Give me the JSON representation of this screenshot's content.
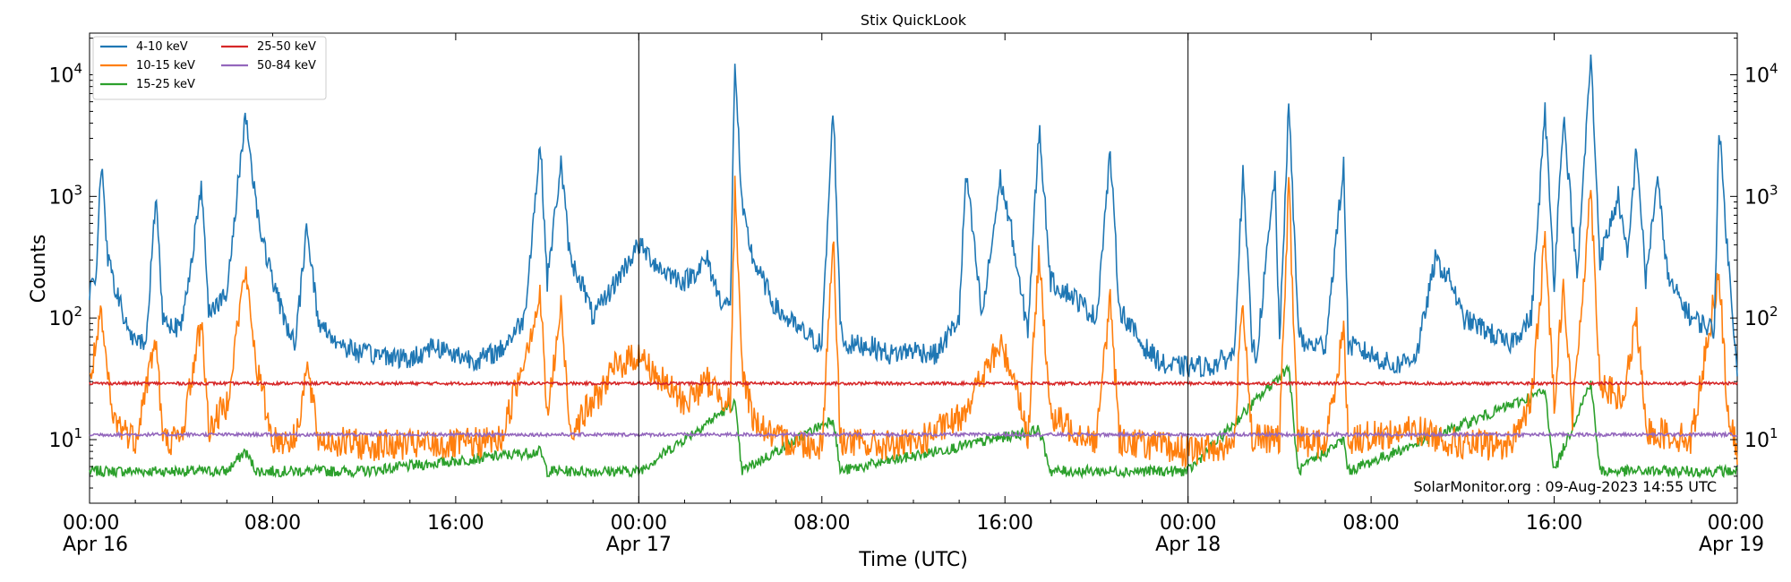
{
  "chart_data": {
    "type": "line",
    "title": "Stix QuickLook",
    "xlabel": "Time (UTC)",
    "ylabel": "Counts",
    "yscale": "log",
    "ylim": [
      3,
      22000
    ],
    "xlim_hours": [
      0,
      72
    ],
    "x_ticks": [
      {
        "h": 0,
        "time": "00:00",
        "date": "Apr 16"
      },
      {
        "h": 8,
        "time": "08:00",
        "date": ""
      },
      {
        "h": 16,
        "time": "16:00",
        "date": ""
      },
      {
        "h": 24,
        "time": "00:00",
        "date": "Apr 17"
      },
      {
        "h": 32,
        "time": "08:00",
        "date": ""
      },
      {
        "h": 40,
        "time": "16:00",
        "date": ""
      },
      {
        "h": 48,
        "time": "00:00",
        "date": "Apr 18"
      },
      {
        "h": 56,
        "time": "08:00",
        "date": ""
      },
      {
        "h": 64,
        "time": "16:00",
        "date": ""
      },
      {
        "h": 72,
        "time": "00:00",
        "date": "Apr 19"
      }
    ],
    "y_ticks": [
      {
        "v": 10,
        "base": "10",
        "exp": "1"
      },
      {
        "v": 100,
        "base": "10",
        "exp": "2"
      },
      {
        "v": 1000,
        "base": "10",
        "exp": "3"
      },
      {
        "v": 10000,
        "base": "10",
        "exp": "4"
      }
    ],
    "day_boundaries_hours": [
      24,
      48
    ],
    "legend": {
      "placement": "top-left",
      "columns": 2
    },
    "series": [
      {
        "name": "4-10 keV",
        "color": "#1f77b4",
        "points": [
          [
            0,
            150
          ],
          [
            0.3,
            250
          ],
          [
            0.5,
            2000
          ],
          [
            0.8,
            300
          ],
          [
            1.5,
            100
          ],
          [
            2,
            60
          ],
          [
            2.5,
            70
          ],
          [
            2.9,
            1100
          ],
          [
            3.2,
            100
          ],
          [
            4,
            80
          ],
          [
            4.9,
            1200
          ],
          [
            5.2,
            120
          ],
          [
            6,
            150
          ],
          [
            6.8,
            4800
          ],
          [
            7.4,
            600
          ],
          [
            8,
            200
          ],
          [
            8.5,
            100
          ],
          [
            9,
            60
          ],
          [
            9.5,
            600
          ],
          [
            10,
            90
          ],
          [
            11,
            60
          ],
          [
            12,
            50
          ],
          [
            13,
            50
          ],
          [
            14,
            45
          ],
          [
            15,
            60
          ],
          [
            16,
            50
          ],
          [
            17,
            45
          ],
          [
            18,
            55
          ],
          [
            19,
            100
          ],
          [
            19.7,
            2800
          ],
          [
            20,
            200
          ],
          [
            20.6,
            1900
          ],
          [
            21,
            300
          ],
          [
            21.5,
            200
          ],
          [
            22,
            100
          ],
          [
            23,
            200
          ],
          [
            24,
            400
          ],
          [
            25,
            250
          ],
          [
            26,
            200
          ],
          [
            27,
            300
          ],
          [
            27.5,
            150
          ],
          [
            28,
            120
          ],
          [
            28.2,
            14000
          ],
          [
            28.5,
            800
          ],
          [
            29,
            300
          ],
          [
            30,
            120
          ],
          [
            31,
            80
          ],
          [
            32,
            60
          ],
          [
            32.5,
            5800
          ],
          [
            32.8,
            100
          ],
          [
            33,
            60
          ],
          [
            34,
            60
          ],
          [
            35,
            50
          ],
          [
            36,
            55
          ],
          [
            37,
            50
          ],
          [
            38,
            100
          ],
          [
            38.3,
            1600
          ],
          [
            39,
            100
          ],
          [
            39.8,
            1400
          ],
          [
            40.3,
            500
          ],
          [
            40.6,
            200
          ],
          [
            41,
            80
          ],
          [
            41.5,
            3700
          ],
          [
            42,
            200
          ],
          [
            43,
            150
          ],
          [
            44,
            100
          ],
          [
            44.6,
            2300
          ],
          [
            45,
            120
          ],
          [
            46,
            60
          ],
          [
            47,
            40
          ],
          [
            47.5,
            40
          ],
          [
            48,
            40
          ],
          [
            49,
            40
          ],
          [
            50,
            50
          ],
          [
            50.4,
            1500
          ],
          [
            50.8,
            60
          ],
          [
            51,
            50
          ],
          [
            51.8,
            1500
          ],
          [
            52,
            60
          ],
          [
            52.4,
            5800
          ],
          [
            52.8,
            100
          ],
          [
            53,
            60
          ],
          [
            54,
            60
          ],
          [
            54.8,
            1800
          ],
          [
            55,
            60
          ],
          [
            56,
            50
          ],
          [
            57,
            40
          ],
          [
            58,
            50
          ],
          [
            58.8,
            300
          ],
          [
            59.5,
            200
          ],
          [
            60,
            100
          ],
          [
            61,
            80
          ],
          [
            62,
            60
          ],
          [
            63,
            100
          ],
          [
            63.6,
            5000
          ],
          [
            64,
            200
          ],
          [
            64.4,
            4700
          ],
          [
            64.8,
            600
          ],
          [
            65,
            200
          ],
          [
            65.6,
            14500
          ],
          [
            66,
            300
          ],
          [
            66.8,
            1000
          ],
          [
            67.2,
            300
          ],
          [
            67.6,
            2600
          ],
          [
            68,
            200
          ],
          [
            68.5,
            1400
          ],
          [
            69,
            200
          ],
          [
            70,
            100
          ],
          [
            71,
            80
          ],
          [
            71.2,
            3900
          ],
          [
            71.6,
            300
          ],
          [
            72,
            40
          ]
        ]
      },
      {
        "name": "10-15 keV",
        "color": "#ff7f0e",
        "points": [
          [
            0,
            30
          ],
          [
            0.5,
            100
          ],
          [
            1,
            15
          ],
          [
            2,
            10
          ],
          [
            2.9,
            70
          ],
          [
            3.2,
            10
          ],
          [
            4,
            10
          ],
          [
            4.9,
            100
          ],
          [
            5.2,
            12
          ],
          [
            6,
            20
          ],
          [
            6.8,
            250
          ],
          [
            7.3,
            40
          ],
          [
            8,
            10
          ],
          [
            9,
            10
          ],
          [
            9.5,
            40
          ],
          [
            10,
            10
          ],
          [
            12,
            9
          ],
          [
            14,
            9
          ],
          [
            16,
            9
          ],
          [
            18,
            10
          ],
          [
            19.7,
            150
          ],
          [
            20,
            15
          ],
          [
            20.6,
            120
          ],
          [
            21,
            12
          ],
          [
            22,
            20
          ],
          [
            23,
            40
          ],
          [
            24,
            50
          ],
          [
            25,
            30
          ],
          [
            26,
            20
          ],
          [
            27,
            30
          ],
          [
            28,
            20
          ],
          [
            28.2,
            1100
          ],
          [
            28.5,
            40
          ],
          [
            29,
            15
          ],
          [
            30,
            10
          ],
          [
            32,
            9
          ],
          [
            32.5,
            500
          ],
          [
            32.8,
            10
          ],
          [
            34,
            9
          ],
          [
            36,
            9
          ],
          [
            38,
            15
          ],
          [
            39.8,
            60
          ],
          [
            40.5,
            30
          ],
          [
            41,
            10
          ],
          [
            41.5,
            350
          ],
          [
            42,
            15
          ],
          [
            44,
            10
          ],
          [
            44.6,
            150
          ],
          [
            45,
            10
          ],
          [
            48,
            8
          ],
          [
            50,
            9
          ],
          [
            50.4,
            150
          ],
          [
            50.8,
            10
          ],
          [
            52,
            10
          ],
          [
            52.4,
            1300
          ],
          [
            52.8,
            10
          ],
          [
            54,
            9
          ],
          [
            54.8,
            80
          ],
          [
            55,
            10
          ],
          [
            58,
            12
          ],
          [
            60,
            9
          ],
          [
            62,
            9
          ],
          [
            63,
            20
          ],
          [
            63.6,
            450
          ],
          [
            64,
            20
          ],
          [
            64.4,
            200
          ],
          [
            64.8,
            15
          ],
          [
            65.6,
            1200
          ],
          [
            66,
            30
          ],
          [
            67,
            20
          ],
          [
            67.6,
            100
          ],
          [
            68,
            12
          ],
          [
            70,
            10
          ],
          [
            71.2,
            250
          ],
          [
            71.6,
            15
          ],
          [
            72,
            8
          ]
        ]
      },
      {
        "name": "15-25 keV",
        "color": "#2ca02c",
        "points": [
          [
            0,
            5.5
          ],
          [
            6,
            5.5
          ],
          [
            6.8,
            8
          ],
          [
            7.3,
            5.5
          ],
          [
            12,
            5.5
          ],
          [
            19.7,
            8
          ],
          [
            20,
            5.5
          ],
          [
            24,
            5.5
          ],
          [
            28.2,
            20
          ],
          [
            28.5,
            5.5
          ],
          [
            32.5,
            15
          ],
          [
            32.8,
            5.5
          ],
          [
            41.5,
            12
          ],
          [
            42,
            5.5
          ],
          [
            48,
            5.5
          ],
          [
            52.4,
            40
          ],
          [
            52.8,
            5.5
          ],
          [
            54.8,
            10
          ],
          [
            55,
            5.5
          ],
          [
            63.6,
            25
          ],
          [
            64,
            5.5
          ],
          [
            65.6,
            30
          ],
          [
            66,
            5.5
          ],
          [
            72,
            5.5
          ]
        ]
      },
      {
        "name": "25-50 keV",
        "color": "#d62728",
        "points": [
          [
            0,
            29
          ],
          [
            12,
            29
          ],
          [
            24,
            29
          ],
          [
            36,
            29
          ],
          [
            48,
            29
          ],
          [
            60,
            29
          ],
          [
            72,
            29
          ]
        ]
      },
      {
        "name": "50-84 keV",
        "color": "#9467bd",
        "points": [
          [
            0,
            11
          ],
          [
            12,
            11
          ],
          [
            24,
            11
          ],
          [
            36,
            11
          ],
          [
            48,
            11
          ],
          [
            60,
            11
          ],
          [
            72,
            11
          ]
        ]
      }
    ]
  },
  "watermark": "SolarMonitor.org : 09-Aug-2023 14:55 UTC"
}
